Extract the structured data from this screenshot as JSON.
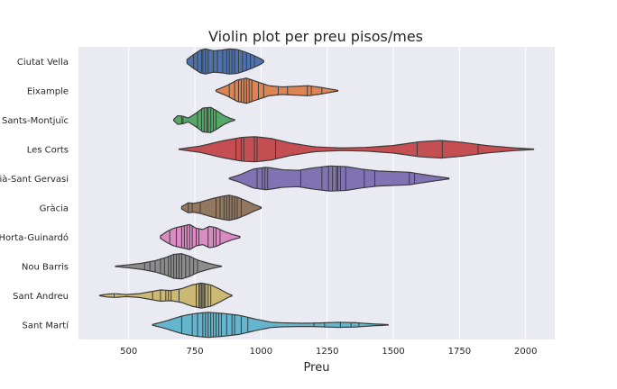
{
  "chart_data": {
    "type": "violin",
    "title": "Violin plot per preu pisos/mes",
    "xlabel": "Preu",
    "ylabel": "",
    "xlim": [
      310,
      2110
    ],
    "xticks": [
      500,
      750,
      1000,
      1250,
      1500,
      1750,
      2000
    ],
    "grid": true,
    "orientation": "horizontal",
    "inner": "stick",
    "categories": [
      "Ciutat Vella",
      "Eixample",
      "Sants-Montjuïc",
      "Les Corts",
      "Sarrià-Sant Gervasi",
      "Gràcia",
      "Horta-Guinardó",
      "Nou Barris",
      "Sant Andreu",
      "Sant Martí"
    ],
    "series": [
      {
        "category": "Ciutat Vella",
        "color": "#4c72b0",
        "range": [
          720,
          1010
        ],
        "density": [
          [
            720,
            0.15
          ],
          [
            745,
            0.55
          ],
          [
            770,
            0.9
          ],
          [
            790,
            1
          ],
          [
            820,
            0.85
          ],
          [
            850,
            0.9
          ],
          [
            880,
            1
          ],
          [
            910,
            0.95
          ],
          [
            940,
            0.75
          ],
          [
            970,
            0.5
          ],
          [
            1000,
            0.2
          ],
          [
            1010,
            0.05
          ]
        ],
        "values": [
          745,
          760,
          775,
          780,
          790,
          800,
          820,
          835,
          855,
          870,
          880,
          890,
          900,
          915,
          930,
          945,
          960,
          975
        ]
      },
      {
        "category": "Eixample",
        "color": "#dd8452",
        "range": [
          830,
          1290
        ],
        "density": [
          [
            830,
            0.05
          ],
          [
            870,
            0.4
          ],
          [
            910,
            0.85
          ],
          [
            945,
            1
          ],
          [
            980,
            0.75
          ],
          [
            1030,
            0.4
          ],
          [
            1080,
            0.3
          ],
          [
            1130,
            0.35
          ],
          [
            1180,
            0.4
          ],
          [
            1230,
            0.25
          ],
          [
            1270,
            0.1
          ],
          [
            1290,
            0.03
          ]
        ],
        "values": [
          880,
          900,
          915,
          925,
          935,
          945,
          955,
          965,
          990,
          1010,
          1065,
          1100,
          1175,
          1190,
          1230
        ]
      },
      {
        "category": "Sants-Montjuïc",
        "color": "#55a868",
        "range": [
          670,
          900
        ],
        "density": [
          [
            670,
            0.05
          ],
          [
            685,
            0.35
          ],
          [
            705,
            0.3
          ],
          [
            725,
            0.15
          ],
          [
            755,
            0.55
          ],
          [
            780,
            0.95
          ],
          [
            810,
            1
          ],
          [
            835,
            0.7
          ],
          [
            860,
            0.35
          ],
          [
            885,
            0.12
          ],
          [
            900,
            0.03
          ]
        ],
        "values": [
          700,
          705,
          760,
          775,
          785,
          795,
          800,
          810,
          820,
          830
        ]
      },
      {
        "category": "Les Corts",
        "color": "#c44e52",
        "range": [
          690,
          2030
        ],
        "density": [
          [
            690,
            0.02
          ],
          [
            770,
            0.25
          ],
          [
            850,
            0.65
          ],
          [
            930,
            0.95
          ],
          [
            980,
            1
          ],
          [
            1040,
            0.85
          ],
          [
            1110,
            0.5
          ],
          [
            1200,
            0.2
          ],
          [
            1300,
            0.1
          ],
          [
            1400,
            0.15
          ],
          [
            1500,
            0.3
          ],
          [
            1600,
            0.6
          ],
          [
            1680,
            0.7
          ],
          [
            1760,
            0.55
          ],
          [
            1850,
            0.3
          ],
          [
            1950,
            0.12
          ],
          [
            2030,
            0.02
          ]
        ],
        "values": [
          905,
          925,
          935,
          975,
          985,
          1055,
          1590,
          1685,
          1820
        ]
      },
      {
        "category": "Sarrià-Sant Gervasi",
        "color": "#8172b3",
        "range": [
          880,
          1710
        ],
        "density": [
          [
            880,
            0.03
          ],
          [
            920,
            0.3
          ],
          [
            970,
            0.75
          ],
          [
            1020,
            0.9
          ],
          [
            1080,
            0.7
          ],
          [
            1140,
            0.65
          ],
          [
            1200,
            0.85
          ],
          [
            1260,
            1
          ],
          [
            1320,
            0.95
          ],
          [
            1380,
            0.75
          ],
          [
            1440,
            0.6
          ],
          [
            1500,
            0.55
          ],
          [
            1560,
            0.5
          ],
          [
            1620,
            0.3
          ],
          [
            1680,
            0.12
          ],
          [
            1710,
            0.03
          ]
        ],
        "values": [
          985,
          1005,
          1015,
          1025,
          1150,
          1230,
          1255,
          1270,
          1285,
          1290,
          1300,
          1320,
          1390,
          1430,
          1560,
          1580
        ]
      },
      {
        "category": "Gràcia",
        "color": "#937860",
        "range": [
          700,
          1000
        ],
        "density": [
          [
            700,
            0.1
          ],
          [
            725,
            0.4
          ],
          [
            745,
            0.35
          ],
          [
            770,
            0.45
          ],
          [
            810,
            0.7
          ],
          [
            850,
            0.9
          ],
          [
            880,
            1
          ],
          [
            910,
            0.85
          ],
          [
            945,
            0.55
          ],
          [
            975,
            0.25
          ],
          [
            1000,
            0.05
          ]
        ],
        "values": [
          725,
          740,
          770,
          830,
          845,
          860,
          870,
          880,
          890,
          900,
          910,
          925
        ]
      },
      {
        "category": "Horta-Guinardó",
        "color": "#da8bc3",
        "range": [
          620,
          920
        ],
        "density": [
          [
            620,
            0.1
          ],
          [
            645,
            0.45
          ],
          [
            670,
            0.7
          ],
          [
            700,
            0.85
          ],
          [
            730,
            1
          ],
          [
            755,
            0.7
          ],
          [
            780,
            0.6
          ],
          [
            805,
            0.85
          ],
          [
            830,
            0.75
          ],
          [
            860,
            0.45
          ],
          [
            890,
            0.22
          ],
          [
            920,
            0.05
          ]
        ],
        "values": [
          655,
          680,
          700,
          710,
          720,
          730,
          740,
          755,
          765,
          800,
          820,
          830,
          845
        ]
      },
      {
        "category": "Nou Barris",
        "color": "#8c8c8c",
        "range": [
          450,
          850
        ],
        "density": [
          [
            450,
            0.02
          ],
          [
            500,
            0.12
          ],
          [
            550,
            0.25
          ],
          [
            600,
            0.45
          ],
          [
            640,
            0.7
          ],
          [
            670,
            0.95
          ],
          [
            700,
            1
          ],
          [
            730,
            0.8
          ],
          [
            760,
            0.5
          ],
          [
            800,
            0.25
          ],
          [
            830,
            0.1
          ],
          [
            850,
            0.02
          ]
        ],
        "values": [
          560,
          580,
          600,
          620,
          635,
          650,
          660,
          670,
          680,
          690,
          700,
          715,
          730,
          745,
          760
        ]
      },
      {
        "category": "Sant Andreu",
        "color": "#ccb974",
        "range": [
          390,
          890
        ],
        "density": [
          [
            390,
            0.02
          ],
          [
            420,
            0.12
          ],
          [
            450,
            0.15
          ],
          [
            490,
            0.08
          ],
          [
            540,
            0.15
          ],
          [
            580,
            0.3
          ],
          [
            620,
            0.45
          ],
          [
            660,
            0.4
          ],
          [
            700,
            0.55
          ],
          [
            740,
            0.85
          ],
          [
            775,
            1
          ],
          [
            810,
            0.85
          ],
          [
            845,
            0.5
          ],
          [
            875,
            0.15
          ],
          [
            890,
            0.03
          ]
        ],
        "values": [
          445,
          590,
          620,
          640,
          650,
          660,
          690,
          755,
          765,
          770,
          775,
          780,
          785,
          790,
          800,
          810
        ]
      },
      {
        "category": "Sant Martí",
        "color": "#64b5cd",
        "range": [
          590,
          1480
        ],
        "density": [
          [
            590,
            0.03
          ],
          [
            640,
            0.3
          ],
          [
            700,
            0.7
          ],
          [
            750,
            0.9
          ],
          [
            800,
            1
          ],
          [
            860,
            0.9
          ],
          [
            920,
            0.75
          ],
          [
            980,
            0.45
          ],
          [
            1040,
            0.2
          ],
          [
            1100,
            0.15
          ],
          [
            1160,
            0.13
          ],
          [
            1220,
            0.15
          ],
          [
            1290,
            0.2
          ],
          [
            1350,
            0.18
          ],
          [
            1420,
            0.08
          ],
          [
            1480,
            0.02
          ]
        ],
        "values": [
          700,
          740,
          760,
          780,
          790,
          800,
          810,
          820,
          830,
          840,
          850,
          870,
          890,
          900,
          925,
          950,
          1200,
          1240,
          1300,
          1340,
          1370
        ]
      }
    ]
  }
}
